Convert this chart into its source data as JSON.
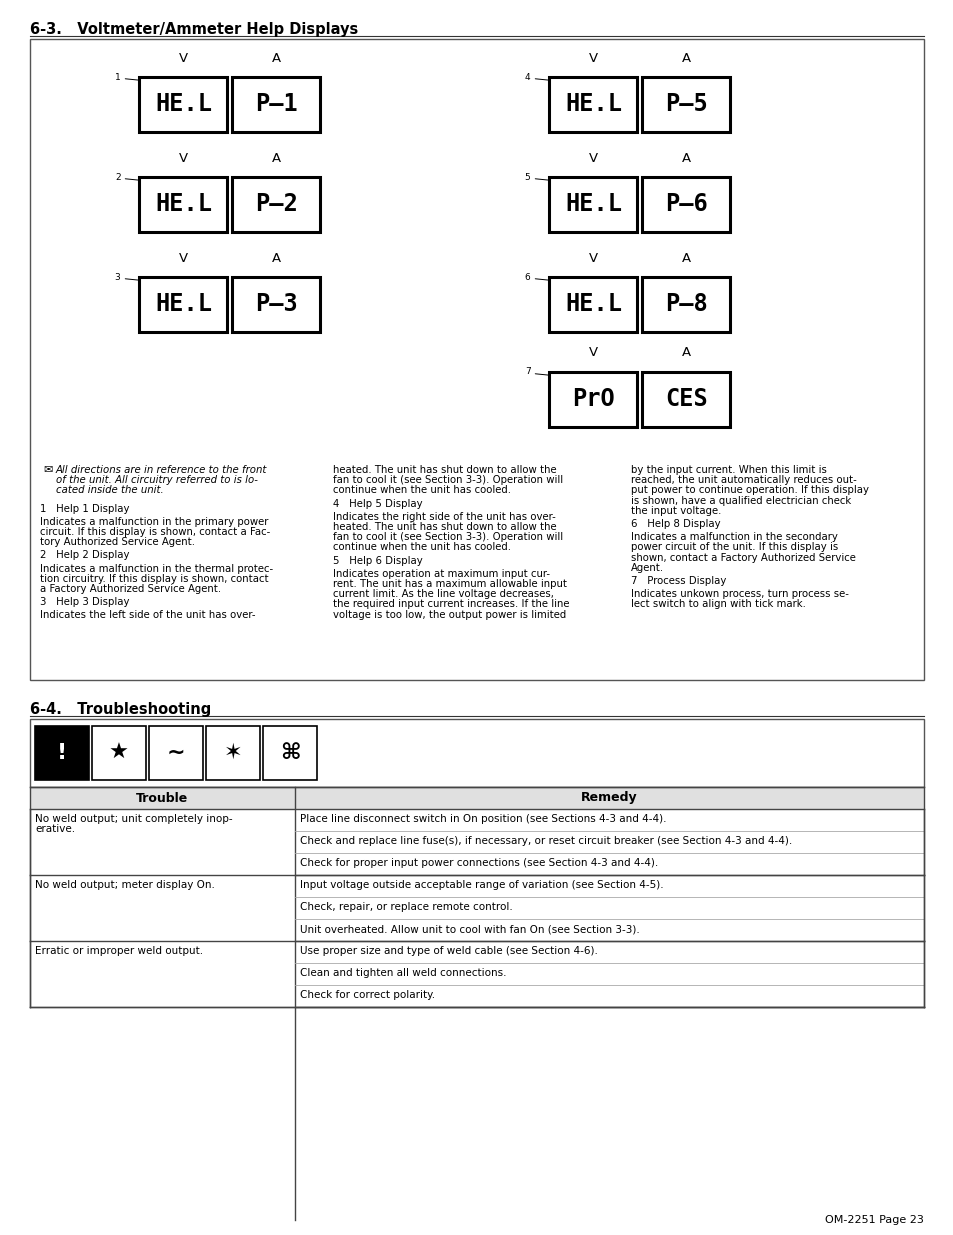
{
  "title_section1": "6-3.   Voltmeter/Ammeter Help Displays",
  "title_section2": "6-4.   Troubleshooting",
  "bg_color": "#ffffff",
  "displays_left": [
    {
      "num": "1",
      "left": "HE.L",
      "right": "P–1"
    },
    {
      "num": "2",
      "left": "HE.L",
      "right": "P–2"
    },
    {
      "num": "3",
      "left": "HE.L",
      "right": "P–3"
    }
  ],
  "displays_right": [
    {
      "num": "4",
      "left": "HE.L",
      "right": "P–5"
    },
    {
      "num": "5",
      "left": "HE.L",
      "right": "P–6"
    },
    {
      "num": "6",
      "left": "HE.L",
      "right": "P–8"
    }
  ],
  "display_proc": {
    "num": "7",
    "left": "PrO",
    "right": "CES"
  },
  "note_line1": "All directions are in reference to the front",
  "note_line2": "of the unit. All circuitry referred to is lo-",
  "note_line3": "cated inside the unit.",
  "col1_paragraphs": [
    [
      "1   Help 1 Display"
    ],
    [
      "Indicates a malfunction in the primary power",
      "circuit. If this display is shown, contact a Fac-",
      "tory Authorized Service Agent."
    ],
    [
      "2   Help 2 Display"
    ],
    [
      "Indicates a malfunction in the thermal protec-",
      "tion circuitry. If this display is shown, contact",
      "a Factory Authorized Service Agent."
    ],
    [
      "3   Help 3 Display"
    ],
    [
      "Indicates the left side of the unit has over-"
    ]
  ],
  "col2_paragraphs": [
    [
      "heated. The unit has shut down to allow the",
      "fan to cool it (see Section 3-3). Operation will",
      "continue when the unit has cooled."
    ],
    [
      "4   Help 5 Display"
    ],
    [
      "Indicates the right side of the unit has over-",
      "heated. The unit has shut down to allow the",
      "fan to cool it (see Section 3-3). Operation will",
      "continue when the unit has cooled."
    ],
    [
      "5   Help 6 Display"
    ],
    [
      "Indicates operation at maximum input cur-",
      "rent. The unit has a maximum allowable input",
      "current limit. As the line voltage decreases,",
      "the required input current increases. If the line",
      "voltage is too low, the output power is limited"
    ]
  ],
  "col3_paragraphs": [
    [
      "by the input current. When this limit is",
      "reached, the unit automatically reduces out-",
      "put power to continue operation. If this display",
      "is shown, have a qualified electrician check",
      "the input voltage."
    ],
    [
      "6   Help 8 Display"
    ],
    [
      "Indicates a malfunction in the secondary",
      "power circuit of the unit. If this display is",
      "shown, contact a Factory Authorized Service",
      "Agent."
    ],
    [
      "7   Process Display"
    ],
    [
      "Indicates unkown process, turn process se-",
      "lect switch to align with tick mark."
    ]
  ],
  "trouble_header": "Trouble",
  "remedy_header": "Remedy",
  "table_rows": [
    {
      "trouble": [
        "No weld output; unit completely inop-",
        "erative."
      ],
      "remedies": [
        "Place line disconnect switch in On position (see Sections 4-3 and 4-4).",
        "Check and replace line fuse(s), if necessary, or reset circuit breaker (see Section 4-3 and 4-4).",
        "Check for proper input power connections (see Section 4-3 and 4-4)."
      ]
    },
    {
      "trouble": [
        "No weld output; meter display On."
      ],
      "remedies": [
        "Input voltage outside acceptable range of variation (see Section 4-5).",
        "Check, repair, or replace remote control.",
        "Unit overheated. Allow unit to cool with fan On (see Section 3-3)."
      ]
    },
    {
      "trouble": [
        "Erratic or improper weld output."
      ],
      "remedies": [
        "Use proper size and type of weld cable (see Section 4-6).",
        "Clean and tighten all weld connections.",
        "Check for correct polarity."
      ]
    }
  ],
  "footer": "OM-2251 Page 23"
}
